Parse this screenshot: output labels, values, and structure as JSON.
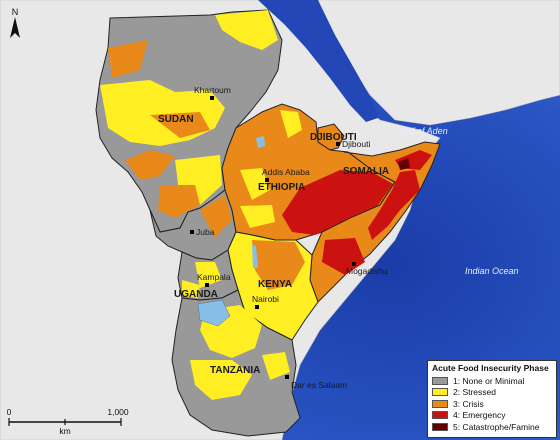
{
  "title": "",
  "legend": {
    "title": "Acute Food Insecurity Phase",
    "items": [
      {
        "label": "1: None or Minimal",
        "color": "#999999"
      },
      {
        "label": "2: Stressed",
        "color": "#ffee22"
      },
      {
        "label": "3: Crisis",
        "color": "#e8891a"
      },
      {
        "label": "4: Emergency",
        "color": "#cc1111"
      },
      {
        "label": "5: Catastrophe/Famine",
        "color": "#660000"
      }
    ]
  },
  "countries": {
    "sudan": "SUDAN",
    "ethiopia": "ETHIOPIA",
    "djibouti": "DJIBOUTI",
    "somalia": "SOMALIA",
    "kenya": "KENYA",
    "uganda": "UGANDA",
    "tanzania": "TANZANIA"
  },
  "cities": {
    "khartoum": "Khartoum",
    "addis_ababa": "Addis Ababa",
    "djibouti": "Djibouti",
    "juba": "Juba",
    "kampala": "Kampala",
    "nairobi": "Nairobi",
    "mogadishu": "Mogadishu",
    "dar_es_salaam": "Dar es Salaam"
  },
  "water_bodies": {
    "gulf_of_aden": "Gulf of Aden",
    "indian_ocean": "Indian Ocean"
  },
  "north_arrow": "N",
  "scale_bar": {
    "start": "0",
    "end": "1,000",
    "unit": "km"
  },
  "colors": {
    "ocean": "#2a52be",
    "land_outside": "#e8e8e8",
    "borders": "#222222"
  }
}
